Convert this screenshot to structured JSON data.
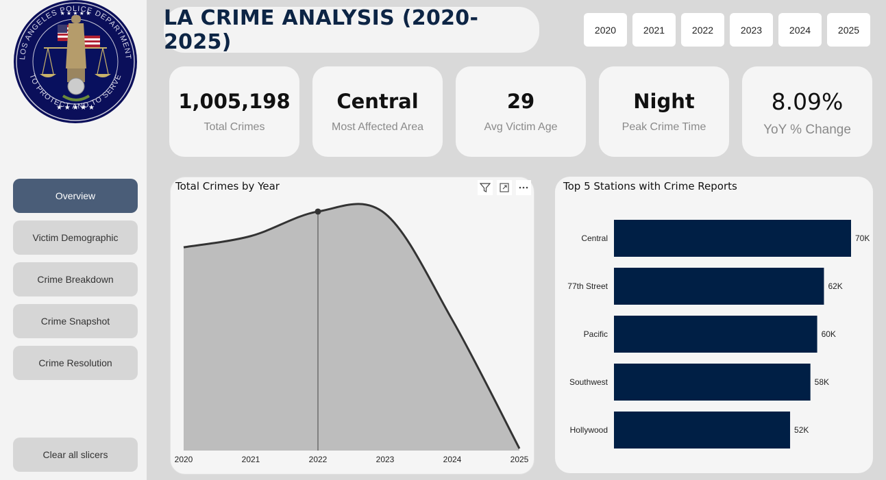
{
  "sidebar": {
    "logo": {
      "icon": "lapd-badge-logo",
      "text_top": "LOS ANGELES POLICE DEPARTMENT",
      "text_bottom": "TO PROTECT AND TO SERVE"
    },
    "nav": [
      {
        "label": "Overview",
        "active": true
      },
      {
        "label": "Victim Demographic",
        "active": false
      },
      {
        "label": "Crime Breakdown",
        "active": false
      },
      {
        "label": "Crime Snapshot",
        "active": false
      },
      {
        "label": "Crime Resolution",
        "active": false
      }
    ],
    "clear_label": "Clear all slicers"
  },
  "header": {
    "title": "LA CRIME ANALYSIS (2020-2025)",
    "years": [
      "2020",
      "2021",
      "2022",
      "2023",
      "2024",
      "2025"
    ]
  },
  "kpis": [
    {
      "value": "1,005,198",
      "label": "Total Crimes"
    },
    {
      "value": "Central",
      "label": "Most Affected Area"
    },
    {
      "value": "29",
      "label": "Avg Victim Age"
    },
    {
      "value": "Night",
      "label": "Peak Crime Time"
    },
    {
      "value": "8.09%",
      "label": "YoY % Change"
    }
  ],
  "visual_icons": [
    "filter-icon",
    "focus-mode-icon",
    "more-options-icon"
  ],
  "colors": {
    "accent_nav": "#4a5d78",
    "bar_fill": "#001f45",
    "area_fill": "#bdbdbd",
    "line": "#333333",
    "title_text": "#0d2545"
  },
  "chart_data": [
    {
      "type": "area",
      "title": "Total Crimes by Year",
      "x": [
        "2020",
        "2021",
        "2022",
        "2023",
        "2024",
        "2025"
      ],
      "series": [
        {
          "values": [
            199000,
            210000,
            234000,
            232000,
            128000,
            2000
          ]
        }
      ],
      "ylim": [
        0,
        240000
      ],
      "highlight_x": "2022",
      "grid": false
    },
    {
      "type": "bar",
      "orientation": "horizontal",
      "title": "Top 5 Stations with Crime Reports",
      "categories": [
        "Central",
        "77th Street",
        "Pacific",
        "Southwest",
        "Hollywood"
      ],
      "values": [
        70000,
        62000,
        60000,
        58000,
        52000
      ],
      "data_labels": [
        "70K",
        "62K",
        "60K",
        "58K",
        "52K"
      ],
      "xlim": [
        0,
        70000
      ]
    }
  ]
}
